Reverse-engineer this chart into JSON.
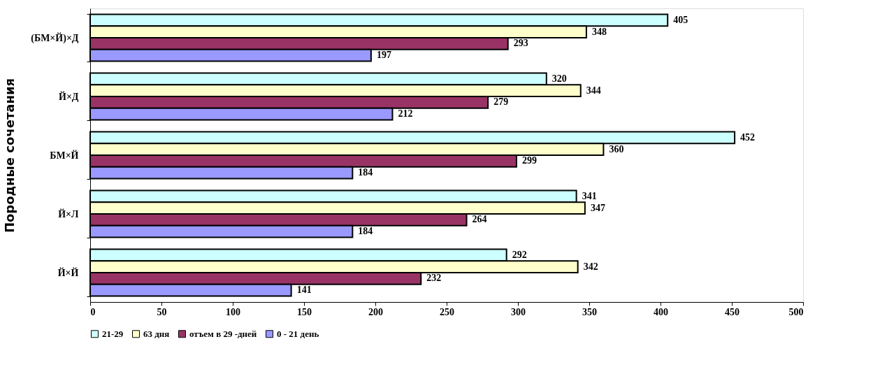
{
  "chart_data": {
    "type": "bar",
    "orientation": "horizontal",
    "ylabel": "Породные сочетания",
    "categories": [
      "(БМ×Й)×Д",
      "Й×Д",
      "БМ×Й",
      "Й×Л",
      "Й×Й"
    ],
    "series": [
      {
        "name": "21-29",
        "color": "#ccffff",
        "values": [
          405,
          320,
          452,
          341,
          292
        ]
      },
      {
        "name": "63 дня",
        "color": "#ffffcc",
        "values": [
          348,
          344,
          360,
          347,
          342
        ]
      },
      {
        "name": "отъем в 29 -дней",
        "color": "#993366",
        "values": [
          293,
          279,
          299,
          264,
          232
        ]
      },
      {
        "name": "0 - 21 день",
        "color": "#9999ff",
        "values": [
          197,
          212,
          184,
          184,
          141
        ]
      }
    ],
    "xlim": [
      0,
      500
    ],
    "xticks": [
      0,
      50,
      100,
      150,
      200,
      250,
      300,
      350,
      400,
      450,
      500
    ],
    "grid": false,
    "legend": "bottom",
    "data_labels": true
  }
}
